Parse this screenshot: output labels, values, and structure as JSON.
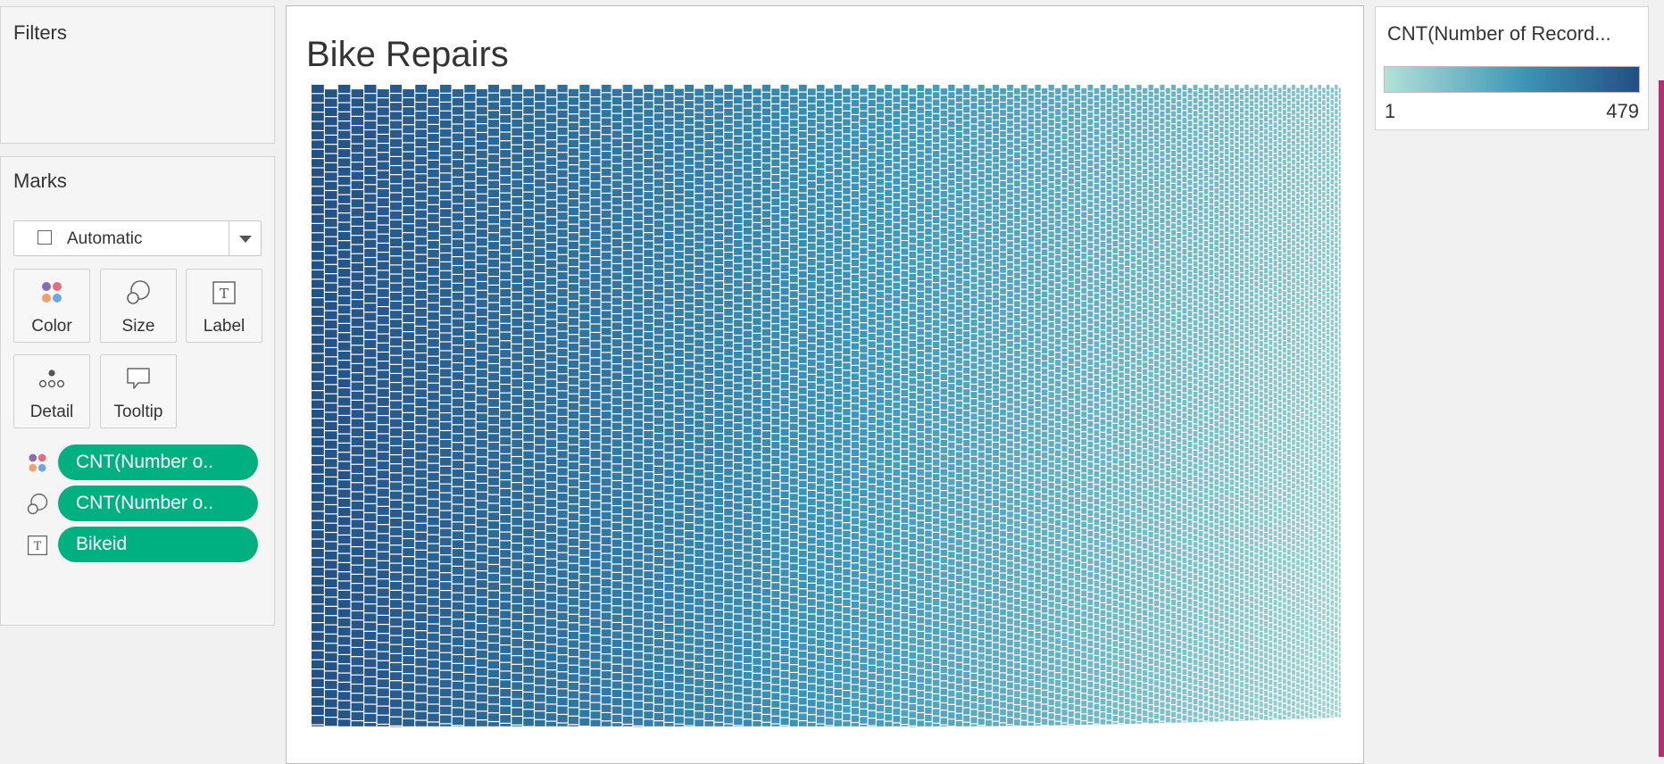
{
  "filters": {
    "title": "Filters"
  },
  "marks": {
    "title": "Marks",
    "mark_type": "Automatic",
    "buttons": [
      "Color",
      "Size",
      "Label",
      "Detail",
      "Tooltip"
    ],
    "pills": [
      {
        "icon": "color-icon",
        "label": "CNT(Number o.."
      },
      {
        "icon": "size-icon",
        "label": "CNT(Number o.."
      },
      {
        "icon": "label-icon",
        "label": "Bikeid"
      }
    ]
  },
  "legend": {
    "title": "CNT(Number of Record...",
    "min_label": "1",
    "max_label": "479"
  },
  "colors": {
    "pill": "#00b080",
    "ramp_low": "#b3e1d8",
    "ramp_mid": "#3d95b5",
    "ramp_high": "#234e82"
  },
  "chart_data": {
    "type": "treemap",
    "title": "Bike Repairs",
    "size_measure": "CNT(Number of Records)",
    "color_measure": "CNT(Number of Records)",
    "label_field": "Bikeid",
    "color_range": [
      1,
      479
    ],
    "legend_position": "top-right"
  }
}
